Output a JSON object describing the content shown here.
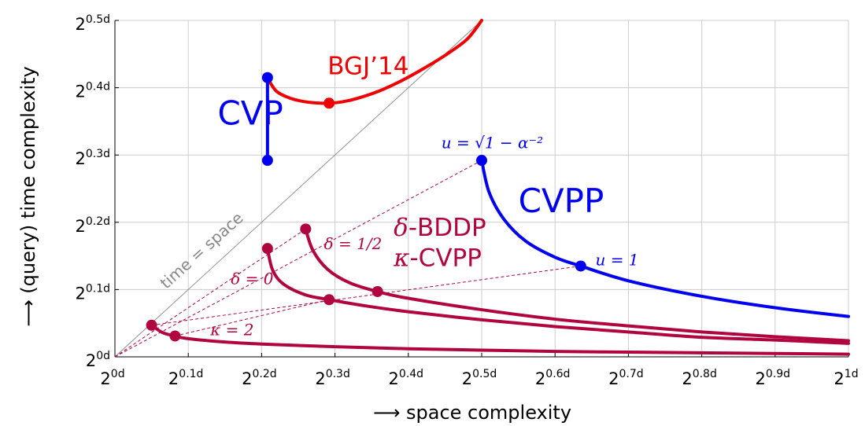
{
  "chart_data": {
    "type": "line",
    "xlabel": "⟶ space complexity",
    "ylabel": "⟶ (query) time complexity",
    "xlim": [
      0,
      1.0
    ],
    "ylim": [
      0,
      0.5
    ],
    "grid": true,
    "x_ticks": [
      {
        "value": 0.0,
        "base": "2",
        "exp": "0d"
      },
      {
        "value": 0.1,
        "base": "2",
        "exp": "0.1d"
      },
      {
        "value": 0.2,
        "base": "2",
        "exp": "0.2d"
      },
      {
        "value": 0.3,
        "base": "2",
        "exp": "0.3d"
      },
      {
        "value": 0.4,
        "base": "2",
        "exp": "0.4d"
      },
      {
        "value": 0.5,
        "base": "2",
        "exp": "0.5d"
      },
      {
        "value": 0.6,
        "base": "2",
        "exp": "0.6d"
      },
      {
        "value": 0.7,
        "base": "2",
        "exp": "0.7d"
      },
      {
        "value": 0.8,
        "base": "2",
        "exp": "0.8d"
      },
      {
        "value": 0.9,
        "base": "2",
        "exp": "0.9d"
      },
      {
        "value": 1.0,
        "base": "2",
        "exp": "1d"
      }
    ],
    "y_ticks": [
      {
        "value": 0.0,
        "base": "2",
        "exp": "0d"
      },
      {
        "value": 0.1,
        "base": "2",
        "exp": "0.1d"
      },
      {
        "value": 0.2,
        "base": "2",
        "exp": "0.2d"
      },
      {
        "value": 0.3,
        "base": "2",
        "exp": "0.3d"
      },
      {
        "value": 0.4,
        "base": "2",
        "exp": "0.4d"
      },
      {
        "value": 0.5,
        "base": "2",
        "exp": "0.5d"
      }
    ],
    "colors": {
      "blue": "#0000ee",
      "red": "#ee0000",
      "purple": "#b0053f",
      "grid": "#cccccc",
      "diag": "#888888"
    },
    "series": [
      {
        "color": "#ee0000",
        "x": [
          0.208,
          0.22,
          0.24,
          0.26,
          0.28,
          0.292,
          0.31,
          0.33,
          0.36,
          0.39,
          0.42,
          0.45,
          0.48,
          0.5
        ],
        "y": [
          0.415,
          0.395,
          0.384,
          0.379,
          0.377,
          0.377,
          0.379,
          0.384,
          0.395,
          0.41,
          0.428,
          0.448,
          0.472,
          0.5
        ]
      },
      {
        "color": "#0000ee",
        "x": [
          0.208,
          0.208
        ],
        "y": [
          0.415,
          0.292
        ]
      },
      {
        "color": "#0000ee",
        "x": [
          0.5,
          0.51,
          0.53,
          0.56,
          0.6,
          0.635,
          0.7,
          0.8,
          0.9,
          1.0
        ],
        "y": [
          0.292,
          0.245,
          0.205,
          0.172,
          0.148,
          0.135,
          0.113,
          0.09,
          0.073,
          0.06
        ]
      },
      {
        "color": "#b0053f",
        "x": [
          0.26,
          0.27,
          0.29,
          0.32,
          0.358,
          0.4,
          0.5,
          0.6,
          0.7,
          0.8,
          0.9,
          1.0
        ],
        "y": [
          0.19,
          0.158,
          0.13,
          0.11,
          0.097,
          0.087,
          0.07,
          0.056,
          0.046,
          0.037,
          0.03,
          0.024
        ]
      },
      {
        "color": "#b0053f",
        "x": [
          0.208,
          0.215,
          0.23,
          0.26,
          0.292,
          0.34,
          0.4,
          0.5,
          0.6,
          0.7,
          0.8,
          0.9,
          1.0
        ],
        "y": [
          0.161,
          0.129,
          0.108,
          0.092,
          0.085,
          0.076,
          0.067,
          0.055,
          0.045,
          0.037,
          0.029,
          0.025,
          0.02
        ]
      },
      {
        "color": "#b0053f",
        "x": [
          0.05,
          0.065,
          0.082,
          0.1,
          0.15,
          0.2,
          0.3,
          0.4,
          0.5,
          0.6,
          0.7,
          0.8,
          0.9,
          1.0
        ],
        "y": [
          0.047,
          0.036,
          0.031,
          0.027,
          0.022,
          0.019,
          0.015,
          0.012,
          0.01,
          0.008,
          0.007,
          0.006,
          0.005,
          0.004
        ]
      }
    ],
    "reference_lines": [
      {
        "style": "solid-thin",
        "color": "#888888",
        "x": [
          0.0,
          0.5
        ],
        "y": [
          0.0,
          0.5
        ]
      },
      {
        "style": "dashed",
        "color": "#b0053f",
        "x": [
          0.0,
          0.5
        ],
        "y": [
          0.0,
          0.292
        ]
      },
      {
        "style": "dashed",
        "color": "#b0053f",
        "x": [
          0.0,
          0.26
        ],
        "y": [
          0.0,
          0.19
        ]
      },
      {
        "style": "dashed",
        "color": "#b0053f",
        "x": [
          0.05,
          0.635
        ],
        "y": [
          0.047,
          0.135
        ]
      },
      {
        "style": "dashed",
        "color": "#b0053f",
        "x": [
          0.082,
          0.292
        ],
        "y": [
          0.031,
          0.085
        ]
      }
    ],
    "markers": [
      {
        "x": 0.208,
        "y": 0.415,
        "color": "#0000ee"
      },
      {
        "x": 0.208,
        "y": 0.292,
        "color": "#0000ee"
      },
      {
        "x": 0.292,
        "y": 0.377,
        "color": "#ee0000"
      },
      {
        "x": 0.5,
        "y": 0.292,
        "color": "#0000ee"
      },
      {
        "x": 0.635,
        "y": 0.135,
        "color": "#0000ee"
      },
      {
        "x": 0.26,
        "y": 0.19,
        "color": "#b0053f"
      },
      {
        "x": 0.208,
        "y": 0.161,
        "color": "#b0053f"
      },
      {
        "x": 0.358,
        "y": 0.097,
        "color": "#b0053f"
      },
      {
        "x": 0.292,
        "y": 0.085,
        "color": "#b0053f"
      },
      {
        "x": 0.05,
        "y": 0.047,
        "color": "#b0053f"
      },
      {
        "x": 0.082,
        "y": 0.031,
        "color": "#b0053f"
      }
    ],
    "annotations": [
      {
        "text": "BGJ’14",
        "x": 0.29,
        "y": 0.42,
        "color": "#ee0000",
        "style": "sans",
        "size": "large"
      },
      {
        "text": "CVP",
        "x": 0.14,
        "y": 0.345,
        "color": "#0000ee",
        "style": "sans",
        "size": "xlarge"
      },
      {
        "text": "CVPP",
        "x": 0.55,
        "y": 0.215,
        "color": "#0000ee",
        "style": "sans",
        "size": "xlarge"
      },
      {
        "text": "u = √1 − α⁻²",
        "x": 0.445,
        "y": 0.31,
        "color": "#0000ee",
        "style": "serif",
        "size": "small"
      },
      {
        "text": "u = 1",
        "x": 0.655,
        "y": 0.136,
        "color": "#0000ee",
        "style": "serif",
        "size": "small"
      },
      {
        "text": "δ-BDDP",
        "x": 0.38,
        "y": 0.18,
        "color": "#b0053f",
        "style": "mixed",
        "size": "large"
      },
      {
        "text": "κ-CVPP",
        "x": 0.38,
        "y": 0.135,
        "color": "#b0053f",
        "style": "mixed",
        "size": "large"
      },
      {
        "text": "δ = 1/2",
        "x": 0.285,
        "y": 0.16,
        "color": "#b0053f",
        "style": "serif",
        "size": "small"
      },
      {
        "text": "δ = 0",
        "x": 0.158,
        "y": 0.108,
        "color": "#b0053f",
        "style": "serif",
        "size": "small"
      },
      {
        "text": "κ = 2",
        "x": 0.13,
        "y": 0.032,
        "color": "#b0053f",
        "style": "serif",
        "size": "small"
      },
      {
        "text": "time = space",
        "x": 0.07,
        "y": 0.1,
        "color": "#888888",
        "style": "sans",
        "size": "small",
        "rotation": "diagonal"
      }
    ]
  }
}
